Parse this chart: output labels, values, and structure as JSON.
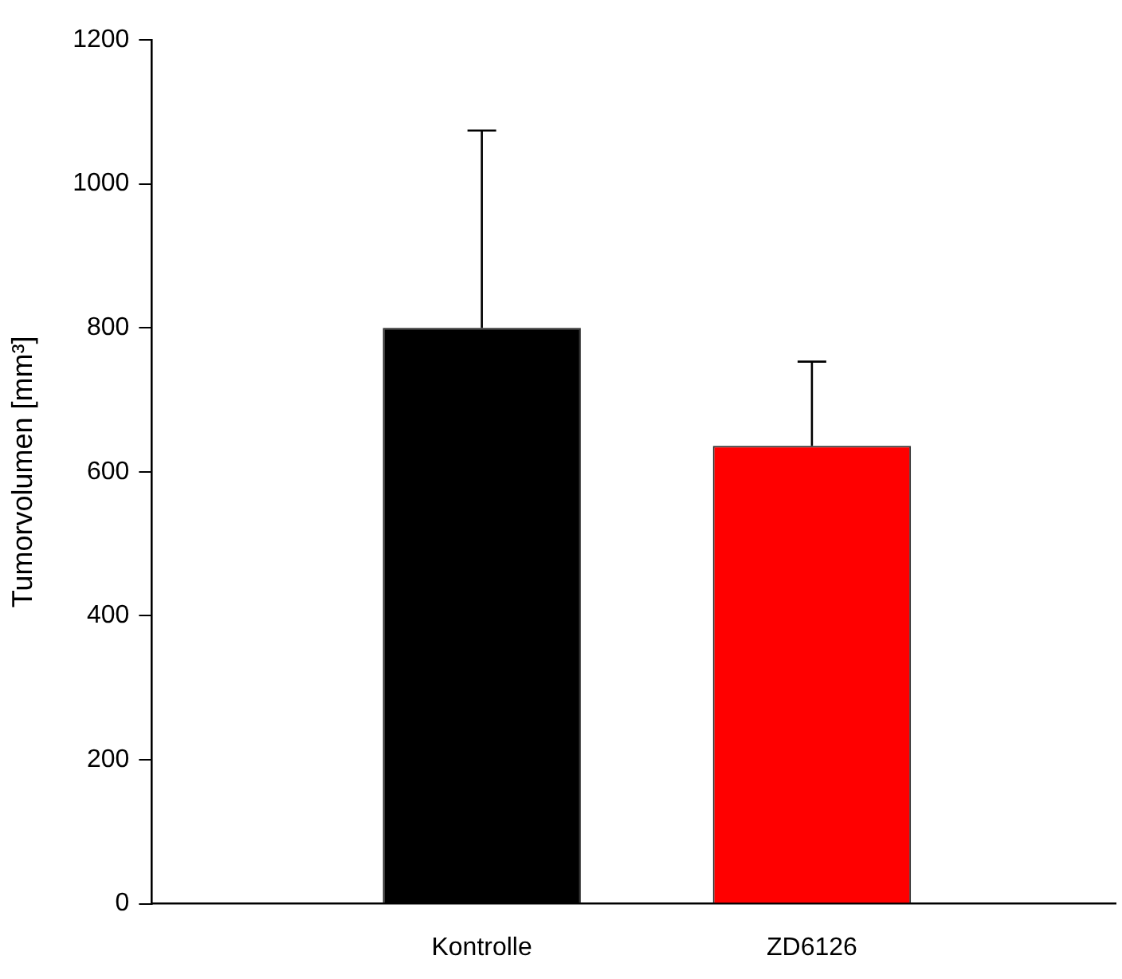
{
  "chart_data": {
    "type": "bar",
    "ylabel": "Tumorvolumen [mm³]",
    "categories": [
      "Kontrolle",
      "ZD6126"
    ],
    "values": [
      800,
      636
    ],
    "colors": [
      "#000000",
      "#ff0000"
    ],
    "errors": [
      [
        800,
        1074
      ],
      [
        636,
        753
      ]
    ],
    "ylim": [
      0,
      1200
    ],
    "yticks": [
      0,
      200,
      400,
      600,
      800,
      1000,
      1200
    ],
    "grid": false,
    "legend": false
  }
}
